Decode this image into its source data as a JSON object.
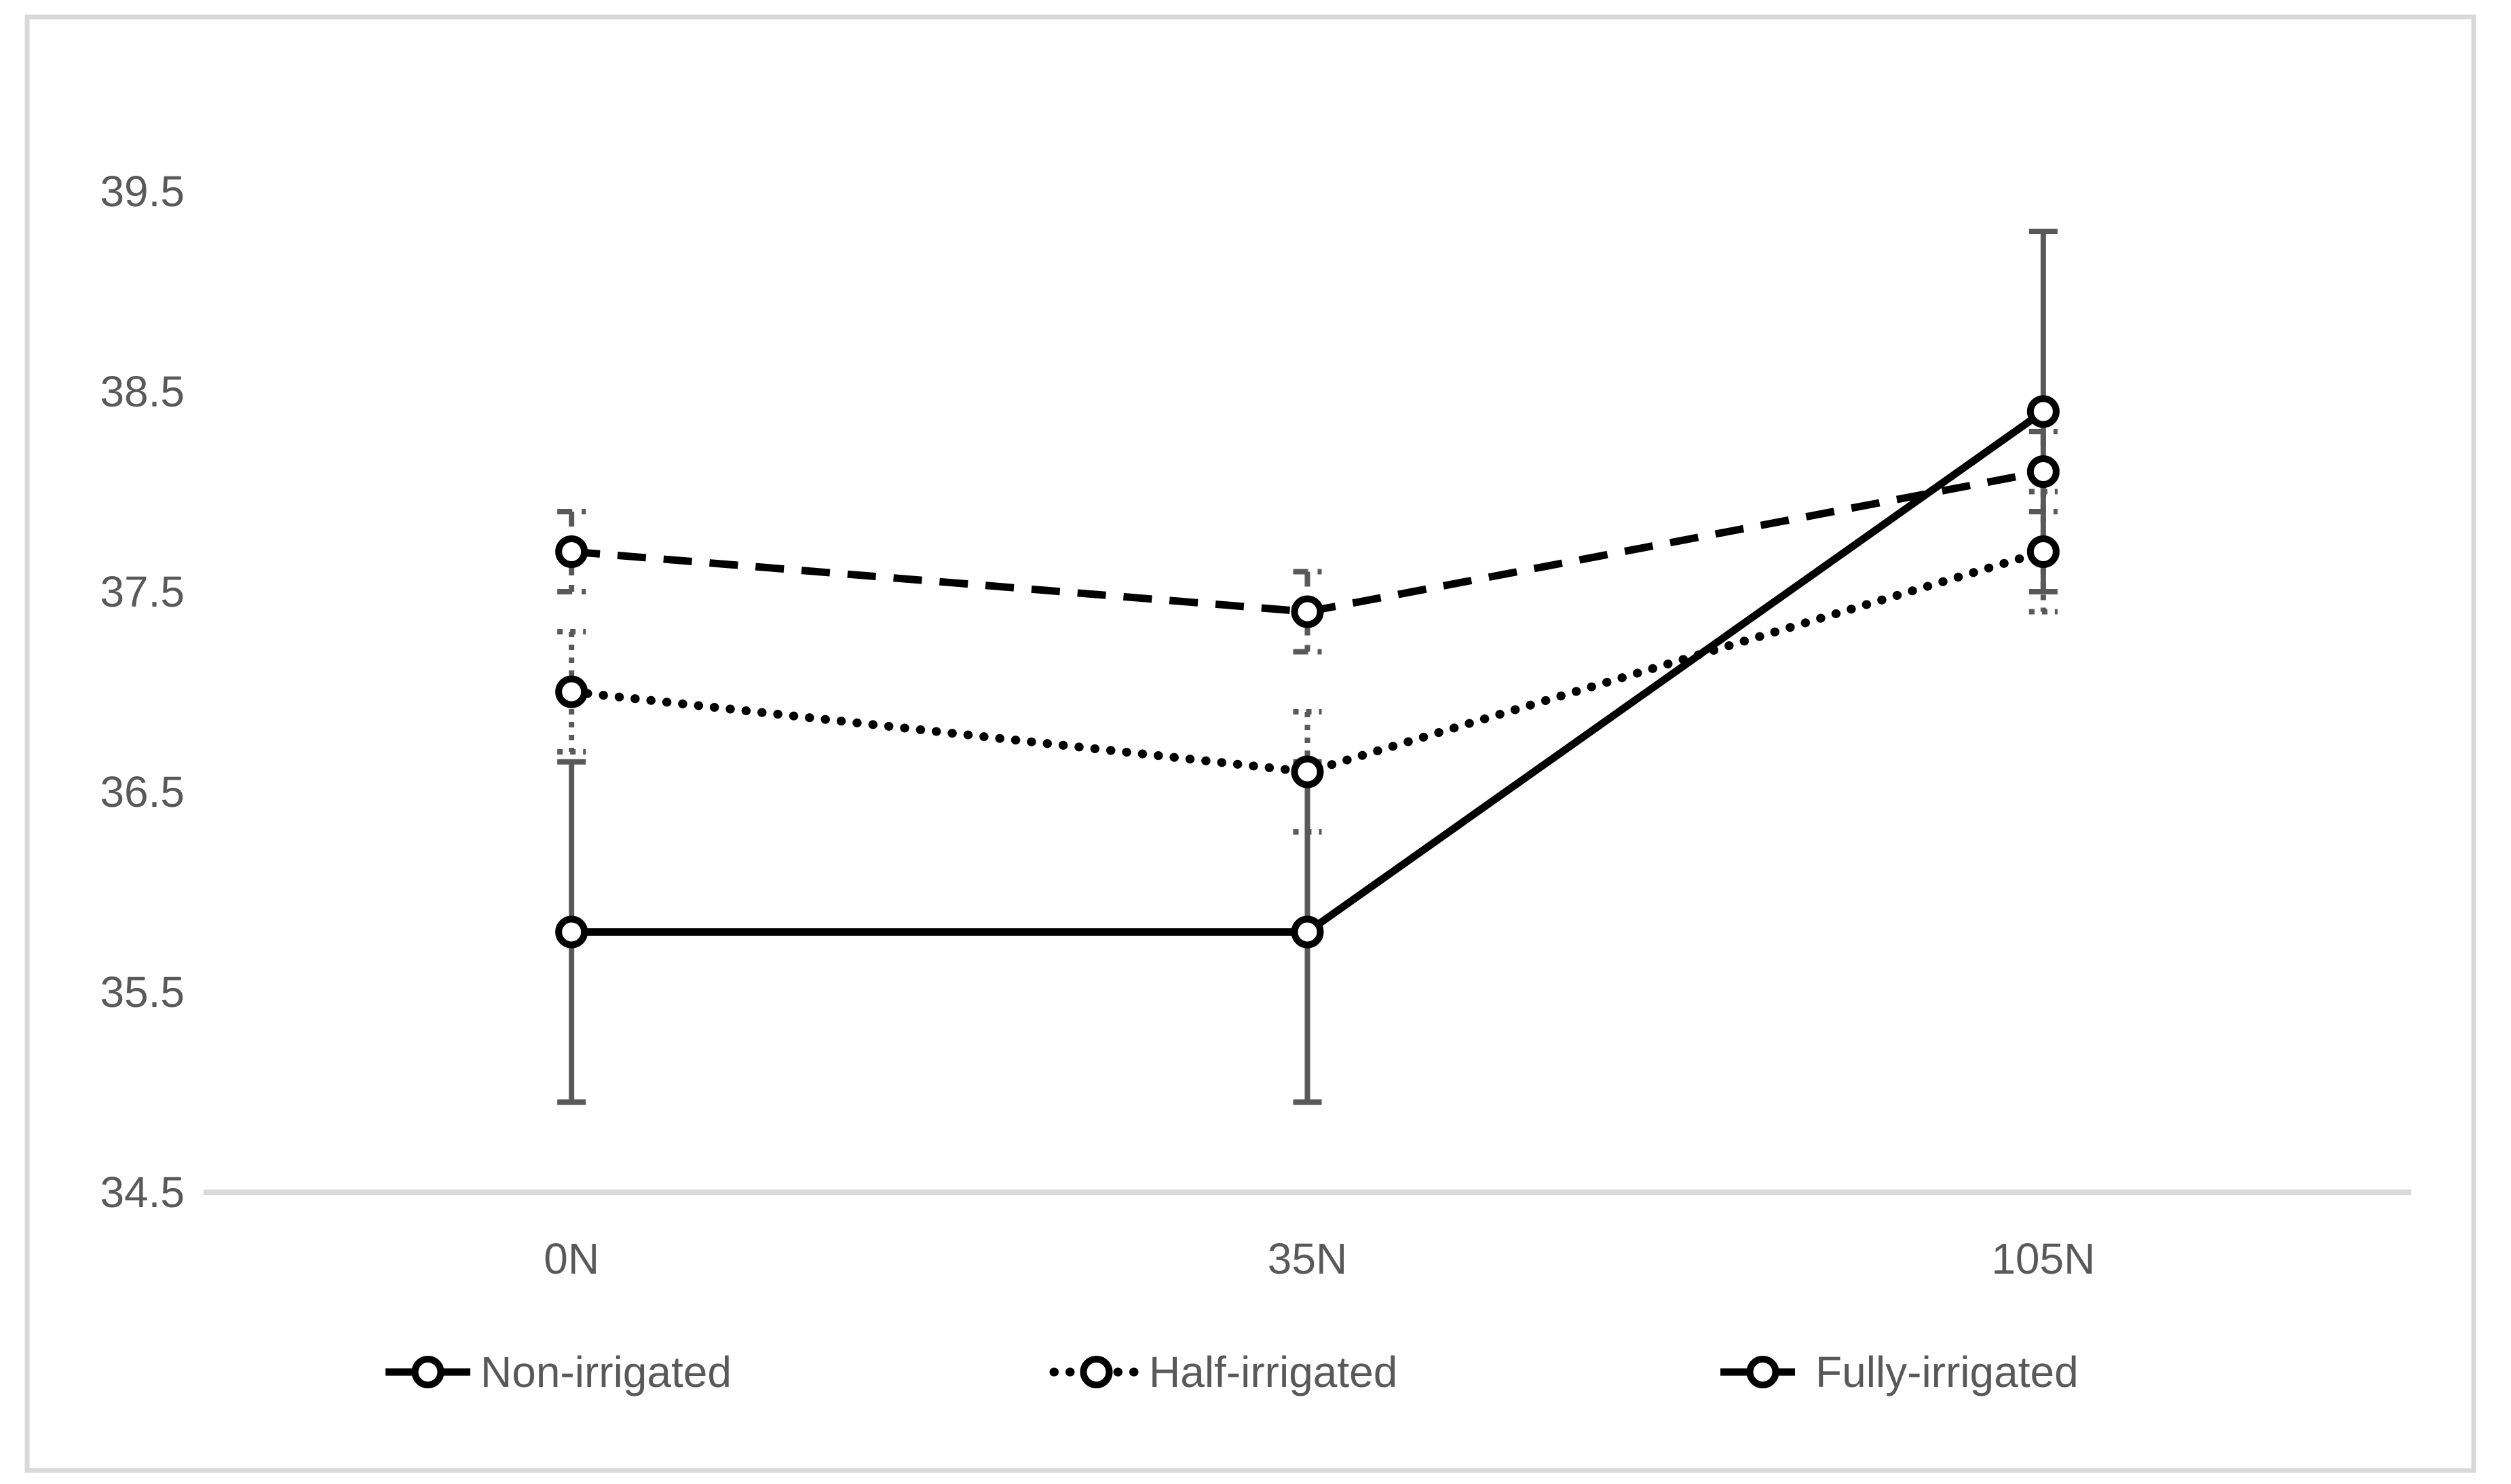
{
  "chart_data": {
    "type": "line",
    "title": "",
    "categories": [
      "0N",
      "35N",
      "105N"
    ],
    "xlabel": "",
    "ylabel": "",
    "ylim": [
      34.5,
      39.5
    ],
    "y_ticks": [
      39.5,
      38.5,
      37.5,
      36.5,
      35.5,
      34.5
    ],
    "y_tick_labels": [
      "39.5",
      "38.5",
      "37.5",
      "36.5",
      "35.5",
      "34.5"
    ],
    "grid": "off",
    "legend_position": "bottom",
    "series": [
      {
        "name": "Non-irrigated",
        "line_style": "solid",
        "marker": "open-circle",
        "values": [
          35.8,
          35.8,
          38.4
        ],
        "error_bars": [
          0.85,
          0.85,
          0.9
        ]
      },
      {
        "name": "Half-irrigated",
        "line_style": "dotted",
        "marker": "open-circle",
        "values": [
          37.0,
          36.6,
          37.7
        ],
        "error_bars": [
          0.3,
          0.3,
          0.3
        ]
      },
      {
        "name": "Fully-irrigated",
        "line_style": "dashed",
        "marker": "open-circle",
        "values": [
          37.7,
          37.4,
          38.1
        ],
        "error_bars": [
          0.2,
          0.2,
          0.2
        ]
      }
    ],
    "colors": {
      "series_line": "#000000",
      "marker_fill": "#ffffff",
      "error_bar": "#595959",
      "axis_line": "#d9d9d9",
      "border": "#d9d9d9",
      "text": "#595959",
      "background": "#ffffff"
    }
  }
}
